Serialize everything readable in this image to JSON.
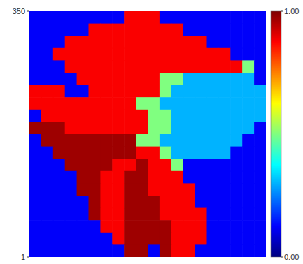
{
  "chart_data": {
    "type": "heatmap",
    "ylim": [
      1,
      350
    ],
    "yticks": [
      1,
      350
    ],
    "tick_labels": "y",
    "color_range": [
      0,
      1
    ],
    "color_ticks": [
      {
        "value": 0,
        "label": "0.00"
      },
      {
        "value": 1,
        "label": "1.00"
      }
    ],
    "cells": [
      [
        0.12,
        0.12,
        0.12,
        0.12,
        0.12,
        0.12,
        0.12,
        0.12,
        0.88,
        0.88,
        0.88,
        0.12,
        0.12,
        0.12,
        0.12,
        0.12,
        0.12,
        0.12,
        0.12,
        0.12
      ],
      [
        0.12,
        0.12,
        0.12,
        0.12,
        0.12,
        0.88,
        0.88,
        0.88,
        0.88,
        0.88,
        0.88,
        0.88,
        0.88,
        0.12,
        0.12,
        0.12,
        0.12,
        0.12,
        0.12,
        0.12
      ],
      [
        0.12,
        0.12,
        0.12,
        0.88,
        0.88,
        0.88,
        0.88,
        0.88,
        0.88,
        0.88,
        0.88,
        0.88,
        0.88,
        0.88,
        0.88,
        0.12,
        0.12,
        0.12,
        0.12,
        0.12
      ],
      [
        0.12,
        0.12,
        0.88,
        0.88,
        0.88,
        0.88,
        0.88,
        0.88,
        0.88,
        0.88,
        0.88,
        0.88,
        0.88,
        0.88,
        0.88,
        0.88,
        0.88,
        0.12,
        0.12,
        0.12
      ],
      [
        0.12,
        0.12,
        0.12,
        0.88,
        0.88,
        0.88,
        0.88,
        0.88,
        0.88,
        0.88,
        0.88,
        0.88,
        0.88,
        0.88,
        0.88,
        0.88,
        0.88,
        0.88,
        0.5,
        0.12
      ],
      [
        0.12,
        0.12,
        0.12,
        0.12,
        0.88,
        0.88,
        0.88,
        0.88,
        0.88,
        0.88,
        0.88,
        0.5,
        0.5,
        0.3,
        0.3,
        0.3,
        0.3,
        0.3,
        0.3,
        0.12
      ],
      [
        0.88,
        0.88,
        0.88,
        0.12,
        0.12,
        0.88,
        0.88,
        0.88,
        0.88,
        0.88,
        0.88,
        0.5,
        0.3,
        0.3,
        0.3,
        0.3,
        0.3,
        0.3,
        0.3,
        0.3
      ],
      [
        0.88,
        0.88,
        0.88,
        0.88,
        0.88,
        0.88,
        0.88,
        0.88,
        0.88,
        0.5,
        0.5,
        0.3,
        0.3,
        0.3,
        0.3,
        0.3,
        0.3,
        0.3,
        0.3,
        0.3
      ],
      [
        0.12,
        0.88,
        0.88,
        0.88,
        0.88,
        0.88,
        0.88,
        0.88,
        0.88,
        0.88,
        0.5,
        0.5,
        0.3,
        0.3,
        0.3,
        0.3,
        0.3,
        0.3,
        0.3,
        0.3
      ],
      [
        0.97,
        0.97,
        0.97,
        0.88,
        0.88,
        0.88,
        0.88,
        0.88,
        0.88,
        0.88,
        0.5,
        0.5,
        0.3,
        0.3,
        0.3,
        0.3,
        0.3,
        0.3,
        0.3,
        0.12
      ],
      [
        0.12,
        0.97,
        0.97,
        0.97,
        0.97,
        0.97,
        0.97,
        0.97,
        0.97,
        0.5,
        0.5,
        0.3,
        0.3,
        0.3,
        0.3,
        0.3,
        0.3,
        0.3,
        0.12,
        0.12
      ],
      [
        0.12,
        0.12,
        0.97,
        0.97,
        0.97,
        0.97,
        0.97,
        0.97,
        0.97,
        0.88,
        0.88,
        0.5,
        0.3,
        0.3,
        0.3,
        0.3,
        0.3,
        0.12,
        0.12,
        0.12
      ],
      [
        0.12,
        0.12,
        0.12,
        0.97,
        0.97,
        0.97,
        0.97,
        0.88,
        0.88,
        0.97,
        0.88,
        0.88,
        0.5,
        0.12,
        0.12,
        0.12,
        0.12,
        0.12,
        0.12,
        0.12
      ],
      [
        0.12,
        0.12,
        0.12,
        0.12,
        0.97,
        0.97,
        0.88,
        0.88,
        0.97,
        0.97,
        0.88,
        0.88,
        0.88,
        0.12,
        0.12,
        0.12,
        0.12,
        0.12,
        0.12,
        0.12
      ],
      [
        0.12,
        0.12,
        0.12,
        0.12,
        0.97,
        0.97,
        0.88,
        0.88,
        0.97,
        0.97,
        0.88,
        0.88,
        0.88,
        0.88,
        0.12,
        0.12,
        0.12,
        0.12,
        0.12,
        0.12
      ],
      [
        0.12,
        0.12,
        0.12,
        0.12,
        0.12,
        0.97,
        0.88,
        0.88,
        0.97,
        0.97,
        0.97,
        0.88,
        0.88,
        0.88,
        0.12,
        0.12,
        0.12,
        0.12,
        0.12,
        0.12
      ],
      [
        0.12,
        0.12,
        0.12,
        0.12,
        0.12,
        0.97,
        0.88,
        0.88,
        0.97,
        0.97,
        0.97,
        0.88,
        0.88,
        0.88,
        0.88,
        0.12,
        0.12,
        0.12,
        0.12,
        0.12
      ],
      [
        0.12,
        0.12,
        0.12,
        0.12,
        0.12,
        0.12,
        0.88,
        0.88,
        0.97,
        0.97,
        0.97,
        0.97,
        0.88,
        0.88,
        0.88,
        0.12,
        0.12,
        0.12,
        0.12,
        0.12
      ],
      [
        0.12,
        0.12,
        0.12,
        0.12,
        0.12,
        0.12,
        0.12,
        0.88,
        0.97,
        0.97,
        0.97,
        0.97,
        0.88,
        0.88,
        0.88,
        0.12,
        0.12,
        0.12,
        0.12,
        0.12
      ],
      [
        0.12,
        0.12,
        0.12,
        0.12,
        0.12,
        0.12,
        0.12,
        0.12,
        0.97,
        0.97,
        0.12,
        0.97,
        0.88,
        0.88,
        0.12,
        0.12,
        0.12,
        0.12,
        0.12,
        0.12
      ]
    ]
  }
}
